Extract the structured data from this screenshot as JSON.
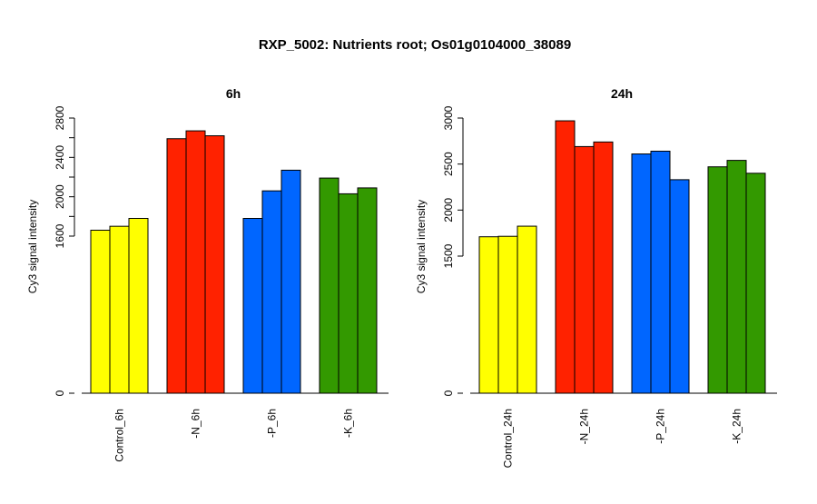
{
  "title": "RXP_5002: Nutrients root; Os01g0104000_38089",
  "colors": {
    "control": "#ffff00",
    "minus_n": "#ff2200",
    "minus_p": "#0066ff",
    "minus_k": "#339900",
    "bar_stroke": "#000000",
    "text": "#000000"
  },
  "chart_data": [
    {
      "type": "bar",
      "title": "6h",
      "ylabel": "Cy3 signal intensity",
      "ylim": [
        0,
        2800
      ],
      "break": {
        "from": 0,
        "to": 1600
      },
      "yticks": [
        0,
        1600,
        2000,
        2400,
        2800
      ],
      "minor_ticks": [
        1800,
        2200,
        2600
      ],
      "groups": [
        {
          "label": "Control_6h",
          "color_key": "control",
          "values": [
            1660,
            1700,
            1780
          ]
        },
        {
          "label": "-N_6h",
          "color_key": "minus_n",
          "values": [
            2590,
            2670,
            2620
          ]
        },
        {
          "label": "-P_6h",
          "color_key": "minus_p",
          "values": [
            1780,
            2060,
            2270
          ]
        },
        {
          "label": "-K_6h",
          "color_key": "minus_k",
          "values": [
            2190,
            2030,
            2090
          ]
        }
      ]
    },
    {
      "type": "bar",
      "title": "24h",
      "ylabel": "Cy3 signal intensity",
      "ylim": [
        0,
        3000
      ],
      "break": {
        "from": 0,
        "to": 1500
      },
      "yticks": [
        0,
        1500,
        2000,
        2500,
        3000
      ],
      "minor_ticks": [],
      "groups": [
        {
          "label": "Control_24h",
          "color_key": "control",
          "values": [
            1710,
            1715,
            1825
          ]
        },
        {
          "label": "-N_24h",
          "color_key": "minus_n",
          "values": [
            2970,
            2690,
            2740
          ]
        },
        {
          "label": "-P_24h",
          "color_key": "minus_p",
          "values": [
            2610,
            2640,
            2330
          ]
        },
        {
          "label": "-K_24h",
          "color_key": "minus_k",
          "values": [
            2470,
            2540,
            2400
          ]
        }
      ]
    }
  ]
}
